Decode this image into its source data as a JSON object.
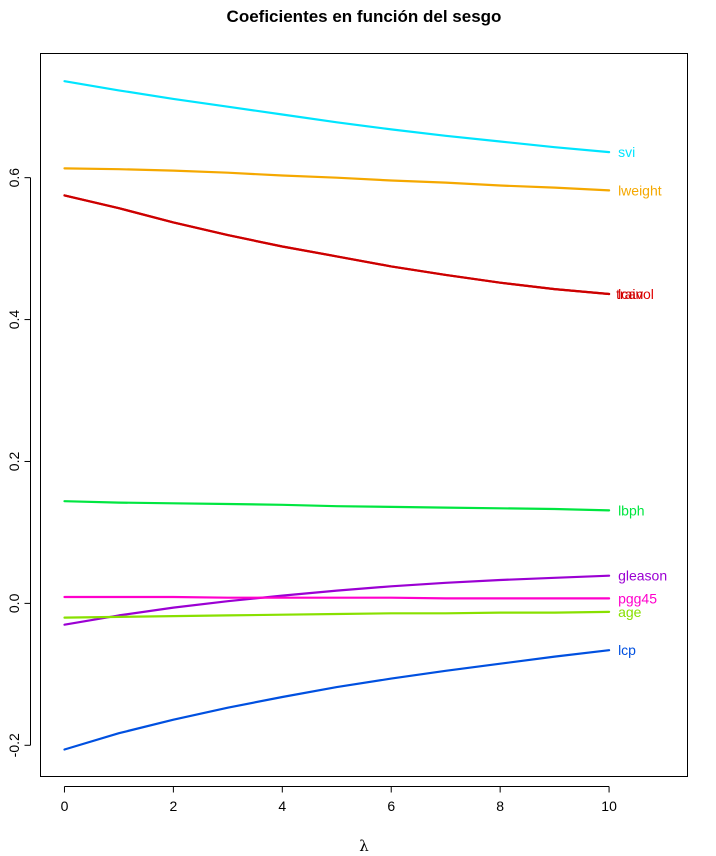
{
  "chart_data": {
    "type": "line",
    "title": "Coeficientes en función del sesgo",
    "xlabel": "λ",
    "ylabel": "",
    "xlim": [
      -0.44,
      11.44
    ],
    "ylim": [
      -0.244,
      0.775
    ],
    "x_ticks": [
      0,
      2,
      4,
      6,
      8,
      10
    ],
    "y_ticks": [
      -0.2,
      0.0,
      0.2,
      0.4,
      0.6
    ],
    "y_tick_labels": [
      "-0.2",
      "0.0",
      "0.2",
      "0.4",
      "0.6"
    ],
    "grid": false,
    "legend": "none",
    "x": [
      0,
      1,
      2,
      3,
      4,
      5,
      6,
      7,
      8,
      9,
      10
    ],
    "series": [
      {
        "name": "svi",
        "color": "#00e5ff",
        "label_offset": 0,
        "values": [
          0.736,
          0.723,
          0.711,
          0.7,
          0.689,
          0.678,
          0.668,
          0.659,
          0.651,
          0.643,
          0.636
        ]
      },
      {
        "name": "lweight",
        "color": "#f5a800",
        "label_offset": 0,
        "values": [
          0.613,
          0.612,
          0.61,
          0.607,
          0.603,
          0.6,
          0.596,
          0.593,
          0.589,
          0.586,
          0.582
        ]
      },
      {
        "name": "lcavol",
        "color": "#e00000",
        "label_offset": 0,
        "values": [
          0.575,
          0.557,
          0.537,
          0.519,
          0.503,
          0.489,
          0.475,
          0.463,
          0.452,
          0.443,
          0.436
        ]
      },
      {
        "name": "train",
        "color": "#cc0000",
        "label_offset": -2,
        "values": [
          0.575,
          0.557,
          0.537,
          0.519,
          0.503,
          0.489,
          0.475,
          0.463,
          0.452,
          0.443,
          0.436
        ]
      },
      {
        "name": "lbph",
        "color": "#00e640",
        "label_offset": 0,
        "values": [
          0.144,
          0.142,
          0.141,
          0.14,
          0.139,
          0.137,
          0.136,
          0.135,
          0.134,
          0.133,
          0.131
        ]
      },
      {
        "name": "gleason",
        "color": "#9b00d3",
        "label_offset": 0,
        "values": [
          -0.03,
          -0.017,
          -0.006,
          0.003,
          0.011,
          0.018,
          0.024,
          0.029,
          0.033,
          0.036,
          0.039
        ]
      },
      {
        "name": "pgg45",
        "color": "#ff00cc",
        "label_offset": 0,
        "values": [
          0.009,
          0.009,
          0.009,
          0.008,
          0.008,
          0.008,
          0.008,
          0.007,
          0.007,
          0.007,
          0.007
        ]
      },
      {
        "name": "age",
        "color": "#88e000",
        "label_offset": 0,
        "values": [
          -0.02,
          -0.019,
          -0.018,
          -0.017,
          -0.016,
          -0.015,
          -0.014,
          -0.014,
          -0.013,
          -0.013,
          -0.012
        ]
      },
      {
        "name": "lcp",
        "color": "#0050e0",
        "label_offset": 0,
        "values": [
          -0.206,
          -0.183,
          -0.164,
          -0.147,
          -0.132,
          -0.118,
          -0.106,
          -0.095,
          -0.085,
          -0.075,
          -0.066
        ]
      }
    ]
  }
}
